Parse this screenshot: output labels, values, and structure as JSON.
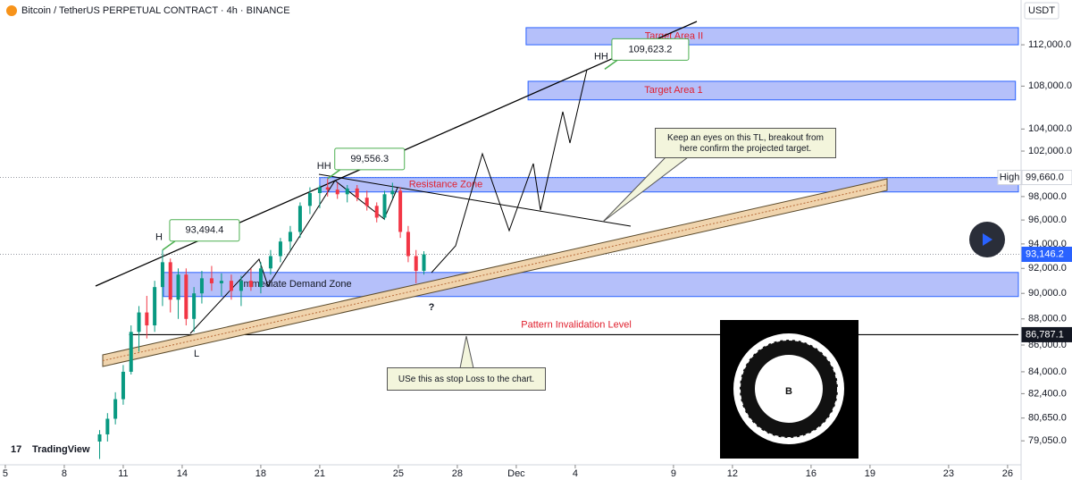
{
  "chart_data": {
    "type": "candlestick",
    "title": "Bitcoin / TetherUS PERPETUAL CONTRACT · 4h · BINANCE",
    "currency": "USDT",
    "brand": "TradingView",
    "log_scale": true,
    "ylim": [
      77400,
      116500
    ],
    "yticks": [
      {
        "value": 112000,
        "label": "112,000.0"
      },
      {
        "value": 108000,
        "label": "108,000.0"
      },
      {
        "value": 104000,
        "label": "104,000.0"
      },
      {
        "value": 102000,
        "label": "102,000.0"
      },
      {
        "value": 98000,
        "label": "98,000.0"
      },
      {
        "value": 96000,
        "label": "96,000.0"
      },
      {
        "value": 94000,
        "label": "94,000.0"
      },
      {
        "value": 92000,
        "label": "92,000.0"
      },
      {
        "value": 90000,
        "label": "90,000.0"
      },
      {
        "value": 88000,
        "label": "88,000.0"
      },
      {
        "value": 86000,
        "label": "86,000.0"
      },
      {
        "value": 84000,
        "label": "84,000.0"
      },
      {
        "value": 82400,
        "label": "82,400.0"
      },
      {
        "value": 80650,
        "label": "80,650.0"
      },
      {
        "value": 79050,
        "label": "79,050.0"
      }
    ],
    "xlim": [
      4.73,
      56.55
    ],
    "xticks": [
      5,
      8,
      11,
      14,
      18,
      21,
      25,
      28,
      {
        "value": 31,
        "label": "Dec"
      },
      {
        "value": 34,
        "label": "4"
      },
      {
        "value": 39,
        "label": "9"
      },
      {
        "value": 42,
        "label": "12"
      },
      {
        "value": 46,
        "label": "16"
      },
      {
        "value": 49,
        "label": "19"
      },
      {
        "value": 53,
        "label": "23"
      },
      {
        "value": 56,
        "label": "26"
      }
    ],
    "up_color": "#089981",
    "down_color": "#f23645",
    "candles": {
      "x": [
        9.8,
        10.2,
        10.6,
        11.0,
        11.4,
        11.8,
        12.2,
        12.6,
        13.0,
        13.4,
        13.8,
        14.2,
        14.6,
        15.0,
        15.5,
        16.0,
        16.5,
        17.0,
        17.5,
        18.0,
        18.5,
        19.0,
        19.5,
        20.0,
        20.5,
        21.0,
        21.4,
        21.9,
        22.4,
        22.9,
        23.4,
        23.9,
        24.3,
        24.7,
        25.1,
        25.5,
        25.9,
        26.3
      ],
      "open": [
        79000,
        79500,
        80600,
        82000,
        84000,
        87000,
        88500,
        87500,
        90500,
        92500,
        89500,
        91500,
        88000,
        90000,
        91200,
        90800,
        91000,
        90200,
        91000,
        90500,
        92000,
        93000,
        94200,
        95000,
        97200,
        98300,
        98800,
        98600,
        98200,
        98700,
        97900,
        97200,
        96200,
        98200,
        98500,
        95000,
        93000,
        91800
      ],
      "high": [
        79800,
        81000,
        82500,
        84500,
        87500,
        89000,
        89800,
        91000,
        93494,
        92800,
        92000,
        92000,
        90500,
        91800,
        92200,
        91600,
        91500,
        91400,
        92000,
        92500,
        93500,
        94500,
        95500,
        97500,
        98800,
        99000,
        99556,
        99200,
        99000,
        99000,
        98500,
        97500,
        98500,
        99200,
        98800,
        95500,
        93500,
        93400
      ],
      "low": [
        77800,
        79000,
        80200,
        81600,
        83800,
        85500,
        86500,
        87000,
        89000,
        88500,
        88000,
        87500,
        87000,
        89200,
        90200,
        89800,
        89500,
        89000,
        90200,
        90000,
        91500,
        92500,
        93500,
        94500,
        96500,
        97000,
        98000,
        97800,
        97500,
        97600,
        96800,
        95800,
        96000,
        97800,
        94500,
        92500,
        90800,
        91500
      ],
      "close": [
        79500,
        80600,
        82000,
        84000,
        87000,
        88500,
        87500,
        90500,
        92500,
        89500,
        91500,
        88000,
        90000,
        91200,
        90800,
        91000,
        90200,
        91000,
        90500,
        92000,
        93000,
        94200,
        95000,
        97200,
        98300,
        98800,
        98600,
        98200,
        98700,
        97900,
        97200,
        96200,
        98200,
        98500,
        95000,
        93000,
        91800,
        93146
      ]
    },
    "zones": [
      {
        "label": "Target Area II",
        "x": [
          31.5,
          56.55
        ],
        "low": 112000,
        "high": 113700,
        "text_color": "#e0202e"
      },
      {
        "label": "Target Area 1",
        "x": [
          31.6,
          56.4
        ],
        "low": 106700,
        "high": 108460,
        "text_color": "#e0202e"
      },
      {
        "label": "Resistance Zone",
        "x": [
          21,
          56.55
        ],
        "low": 98400,
        "high": 99650,
        "text_color": "#e0202e"
      },
      {
        "label": "Immediate Demand Zone",
        "x": [
          13.05,
          56.55
        ],
        "low": 89750,
        "high": 91670,
        "text_color": "#131722"
      }
    ],
    "price_labels": [
      {
        "tag": "HH",
        "label": "109,623.2",
        "value": 109623.2,
        "x": 35.5
      },
      {
        "tag": "HH",
        "label": "99,556.3",
        "value": 99556.3,
        "x": 21.4
      },
      {
        "tag": "H",
        "label": "93,494.4",
        "value": 93494.4,
        "x": 13.0
      }
    ],
    "markers": [
      {
        "tag": "High",
        "label": "99,660.0",
        "value": 99660
      },
      {
        "label": "93,146.2",
        "value": 93146.2
      },
      {
        "label": "86,787.1",
        "value": 86787.1
      }
    ],
    "level": {
      "label": "Pattern Invalidation Level",
      "value": 86787.1,
      "x": [
        11.3,
        56.55
      ]
    },
    "notes": [
      "L",
      "?"
    ],
    "callouts": [
      "Keep an eyes on this TL, breakout from here confirm the projected target.",
      "USe this as stop Loss to the chart."
    ]
  }
}
